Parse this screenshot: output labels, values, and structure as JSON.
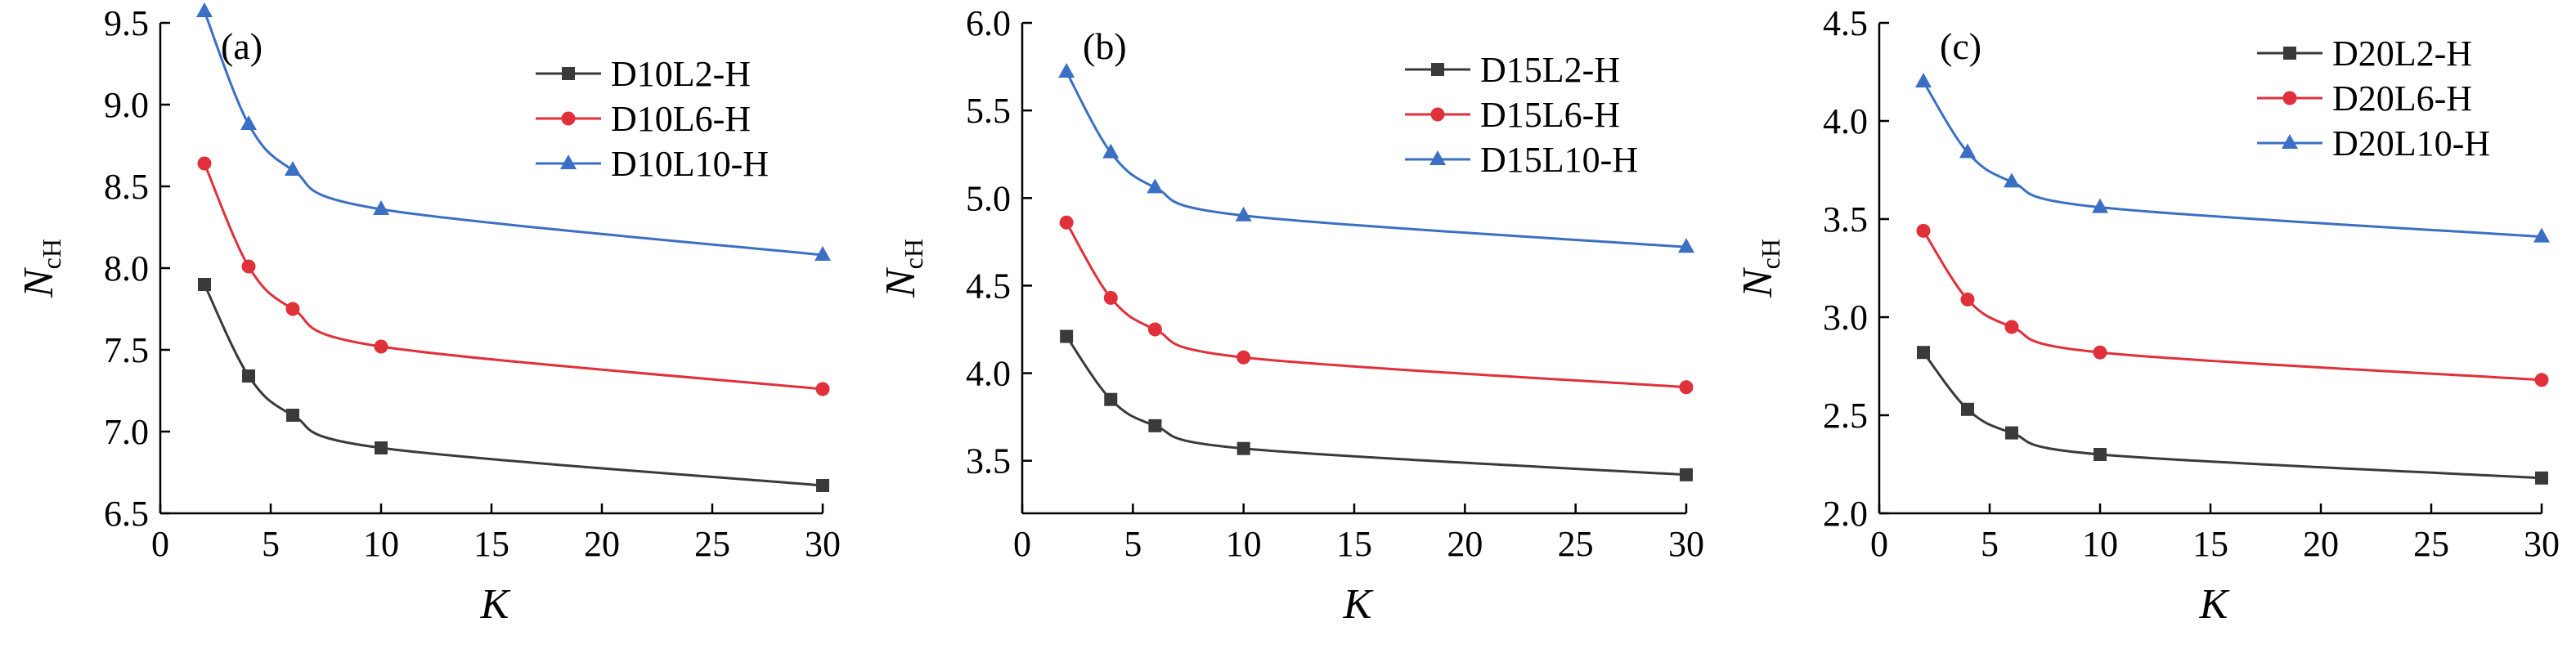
{
  "chart_data": [
    {
      "type": "line",
      "panel_label": "(a)",
      "xlabel": "K",
      "ylabel_main": "N",
      "ylabel_sub": "cH",
      "xlim": [
        0,
        30
      ],
      "ylim": [
        6.5,
        9.5
      ],
      "xticks": [
        0,
        5,
        10,
        15,
        20,
        25,
        30
      ],
      "xtick_labels": [
        "0",
        "5",
        "10",
        "15",
        "20",
        "25",
        "30"
      ],
      "yticks": [
        6.5,
        7.0,
        7.5,
        8.0,
        8.5,
        9.0,
        9.5
      ],
      "ytick_labels": [
        "6.5",
        "7.0",
        "7.5",
        "8.0",
        "8.5",
        "9.0",
        "9.5"
      ],
      "x": [
        2,
        4,
        6,
        10,
        30
      ],
      "legend_position": "top-right",
      "grid": false,
      "series": [
        {
          "name": "D10L2-H",
          "marker": "square",
          "color": "#3a3a3a",
          "values": [
            7.9,
            7.34,
            7.1,
            6.9,
            6.67
          ]
        },
        {
          "name": "D10L6-H",
          "marker": "circle",
          "color": "#e0303a",
          "values": [
            8.64,
            8.01,
            7.75,
            7.52,
            7.26
          ]
        },
        {
          "name": "D10L10-H",
          "marker": "triangle",
          "color": "#3b6fc4",
          "values": [
            9.57,
            8.88,
            8.6,
            8.36,
            8.08
          ]
        }
      ]
    },
    {
      "type": "line",
      "panel_label": "(b)",
      "xlabel": "K",
      "ylabel_main": "N",
      "ylabel_sub": "cH",
      "xlim": [
        0,
        30
      ],
      "ylim": [
        3.2,
        6.0
      ],
      "xticks": [
        0,
        5,
        10,
        15,
        20,
        25,
        30
      ],
      "xtick_labels": [
        "0",
        "5",
        "10",
        "15",
        "20",
        "25",
        "30"
      ],
      "yticks": [
        3.5,
        4.0,
        4.5,
        5.0,
        5.5,
        6.0
      ],
      "ytick_labels": [
        "3.5",
        "4.0",
        "4.5",
        "5.0",
        "5.5",
        "6.0"
      ],
      "x": [
        2,
        4,
        6,
        10,
        30
      ],
      "legend_position": "top-right",
      "grid": false,
      "series": [
        {
          "name": "D15L2-H",
          "marker": "square",
          "color": "#3a3a3a",
          "values": [
            4.21,
            3.85,
            3.7,
            3.57,
            3.42
          ]
        },
        {
          "name": "D15L6-H",
          "marker": "circle",
          "color": "#e0303a",
          "values": [
            4.86,
            4.43,
            4.25,
            4.09,
            3.92
          ]
        },
        {
          "name": "D15L10-H",
          "marker": "triangle",
          "color": "#3b6fc4",
          "values": [
            5.72,
            5.26,
            5.06,
            4.9,
            4.72
          ]
        }
      ]
    },
    {
      "type": "line",
      "panel_label": "(c)",
      "xlabel": "K",
      "ylabel_main": "N",
      "ylabel_sub": "cH",
      "xlim": [
        0,
        30
      ],
      "ylim": [
        2.0,
        4.5
      ],
      "xticks": [
        0,
        5,
        10,
        15,
        20,
        25,
        30
      ],
      "xtick_labels": [
        "0",
        "5",
        "10",
        "15",
        "20",
        "25",
        "30"
      ],
      "yticks": [
        2.0,
        2.5,
        3.0,
        3.5,
        4.0,
        4.5
      ],
      "ytick_labels": [
        "2.0",
        "2.5",
        "3.0",
        "3.5",
        "4.0",
        "4.5"
      ],
      "x": [
        2,
        4,
        6,
        10,
        30
      ],
      "legend_position": "top-right",
      "grid": false,
      "series": [
        {
          "name": "D20L2-H",
          "marker": "square",
          "color": "#3a3a3a",
          "values": [
            2.82,
            2.53,
            2.41,
            2.3,
            2.18
          ]
        },
        {
          "name": "D20L6-H",
          "marker": "circle",
          "color": "#e0303a",
          "values": [
            3.44,
            3.09,
            2.95,
            2.82,
            2.68
          ]
        },
        {
          "name": "D20L10-H",
          "marker": "triangle",
          "color": "#3b6fc4",
          "values": [
            4.2,
            3.84,
            3.69,
            3.56,
            3.41
          ]
        }
      ]
    }
  ]
}
